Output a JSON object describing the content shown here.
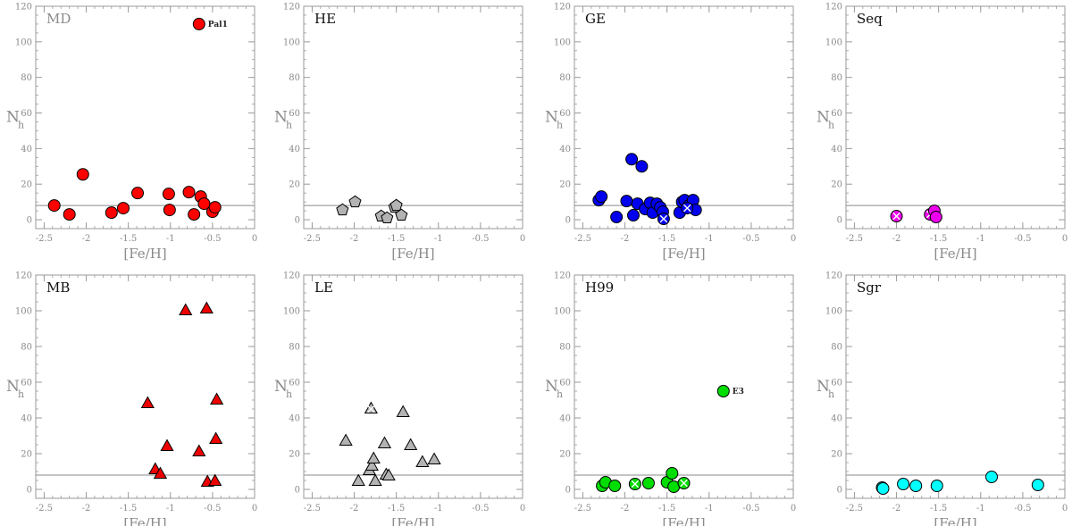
{
  "chart_data": [
    {
      "type": "scatter",
      "panel": "MD",
      "label_style": "grey",
      "marker": "circle",
      "color": "#ff0000",
      "xlabel": "[Fe/H]",
      "ylabel": "N",
      "ylabel_sub": "h",
      "xlim": [
        -2.6,
        0
      ],
      "ylim": [
        -5,
        120
      ],
      "xticks": [
        "-2.5",
        "-2",
        "-1.5",
        "-1",
        "-0.5",
        "0"
      ],
      "yticks": [
        "0",
        "20",
        "40",
        "60",
        "80",
        "100",
        "120"
      ],
      "hline": 8,
      "points": [
        {
          "x": -2.38,
          "y": 8
        },
        {
          "x": -2.2,
          "y": 3
        },
        {
          "x": -2.04,
          "y": 25.5
        },
        {
          "x": -1.7,
          "y": 4
        },
        {
          "x": -1.56,
          "y": 6.5
        },
        {
          "x": -1.39,
          "y": 15
        },
        {
          "x": -1.02,
          "y": 14.5
        },
        {
          "x": -1.01,
          "y": 5.5
        },
        {
          "x": -0.78,
          "y": 15.5
        },
        {
          "x": -0.72,
          "y": 3
        },
        {
          "x": -0.64,
          "y": 13
        },
        {
          "x": -0.6,
          "y": 9
        },
        {
          "x": -0.5,
          "y": 4.5
        },
        {
          "x": -0.47,
          "y": 7
        },
        {
          "x": -0.66,
          "y": 110
        }
      ],
      "annotations": [
        {
          "text": "Pal1",
          "x": -0.66,
          "y": 110
        }
      ]
    },
    {
      "type": "scatter",
      "panel": "HE",
      "label_style": "dark",
      "marker": "pentagon",
      "color": "#b3b3b3",
      "xlabel": "[Fe/H]",
      "ylabel": "N",
      "ylabel_sub": "h",
      "xlim": [
        -2.6,
        0
      ],
      "ylim": [
        -5,
        120
      ],
      "xticks": [
        "-2.5",
        "-2",
        "-1.5",
        "-1",
        "-0.5",
        "0"
      ],
      "yticks": [
        "0",
        "20",
        "40",
        "60",
        "80",
        "100",
        "120"
      ],
      "hline": 8,
      "points": [
        {
          "x": -2.14,
          "y": 5.5
        },
        {
          "x": -1.99,
          "y": 10
        },
        {
          "x": -1.68,
          "y": 2
        },
        {
          "x": -1.61,
          "y": 1
        },
        {
          "x": -1.52,
          "y": 7
        },
        {
          "x": -1.5,
          "y": 8
        },
        {
          "x": -1.44,
          "y": 2.5
        }
      ]
    },
    {
      "type": "scatter",
      "panel": "GE",
      "label_style": "dark",
      "marker": "circle",
      "color": "#0000ee",
      "xlabel": "[Fe/H]",
      "ylabel": "N",
      "ylabel_sub": "h",
      "xlim": [
        -2.6,
        0
      ],
      "ylim": [
        -5,
        120
      ],
      "xticks": [
        "-2.5",
        "-2",
        "-1.5",
        "-1",
        "-0.5",
        "0"
      ],
      "yticks": [
        "0",
        "20",
        "40",
        "60",
        "80",
        "100",
        "120"
      ],
      "hline": 8,
      "points": [
        {
          "x": -2.31,
          "y": 11
        },
        {
          "x": -2.28,
          "y": 13
        },
        {
          "x": -2.1,
          "y": 1.5
        },
        {
          "x": -1.98,
          "y": 10.5
        },
        {
          "x": -1.92,
          "y": 34
        },
        {
          "x": -1.9,
          "y": 2.5
        },
        {
          "x": -1.85,
          "y": 9
        },
        {
          "x": -1.8,
          "y": 30
        },
        {
          "x": -1.76,
          "y": 6
        },
        {
          "x": -1.7,
          "y": 9.5
        },
        {
          "x": -1.67,
          "y": 4
        },
        {
          "x": -1.62,
          "y": 9
        },
        {
          "x": -1.58,
          "y": 7
        },
        {
          "x": -1.55,
          "y": 4.5
        },
        {
          "x": -1.35,
          "y": 4
        },
        {
          "x": -1.32,
          "y": 10
        },
        {
          "x": -1.29,
          "y": 11
        },
        {
          "x": -1.24,
          "y": 8
        },
        {
          "x": -1.19,
          "y": 11
        },
        {
          "x": -1.16,
          "y": 5.5
        },
        {
          "x": -1.54,
          "y": 0.5,
          "cross": true
        },
        {
          "x": -1.26,
          "y": 6.5,
          "cross": true
        }
      ]
    },
    {
      "type": "scatter",
      "panel": "Seq",
      "label_style": "dark",
      "marker": "circle",
      "color": "#ee00ee",
      "xlabel": "[Fe/H]",
      "ylabel": "N",
      "ylabel_sub": "h",
      "xlim": [
        -2.6,
        0
      ],
      "ylim": [
        -5,
        120
      ],
      "xticks": [
        "-2.5",
        "-2",
        "-1.5",
        "-1",
        "-0.5",
        "0"
      ],
      "yticks": [
        "0",
        "20",
        "40",
        "60",
        "80",
        "100",
        "120"
      ],
      "hline": 8,
      "points": [
        {
          "x": -2.0,
          "y": 2,
          "cross": true
        },
        {
          "x": -1.6,
          "y": 3,
          "cross": true
        },
        {
          "x": -1.55,
          "y": 5
        },
        {
          "x": -1.53,
          "y": 1.5
        }
      ]
    },
    {
      "type": "scatter",
      "panel": "MB",
      "label_style": "dark",
      "marker": "triangle",
      "color": "#ee0000",
      "xlabel": "[Fe/H]",
      "ylabel": "N",
      "ylabel_sub": "h",
      "xlim": [
        -2.6,
        0
      ],
      "ylim": [
        -5,
        120
      ],
      "xticks": [
        "-2.5",
        "-2",
        "-1.5",
        "-1",
        "-0.5",
        "0"
      ],
      "yticks": [
        "0",
        "20",
        "40",
        "60",
        "80",
        "100",
        "120"
      ],
      "hline": 8,
      "points": [
        {
          "x": -1.27,
          "y": 48
        },
        {
          "x": -1.18,
          "y": 11
        },
        {
          "x": -1.12,
          "y": 8.5
        },
        {
          "x": -1.04,
          "y": 24
        },
        {
          "x": -0.82,
          "y": 100
        },
        {
          "x": -0.66,
          "y": 21
        },
        {
          "x": -0.57,
          "y": 101
        },
        {
          "x": -0.56,
          "y": 4
        },
        {
          "x": -0.47,
          "y": 4.5
        },
        {
          "x": -0.46,
          "y": 28
        },
        {
          "x": -0.45,
          "y": 50
        }
      ]
    },
    {
      "type": "scatter",
      "panel": "LE",
      "label_style": "dark",
      "marker": "triangle",
      "color": "#b3b3b3",
      "xlabel": "[Fe/H]",
      "ylabel": "N",
      "ylabel_sub": "h",
      "xlim": [
        -2.6,
        0
      ],
      "ylim": [
        -5,
        120
      ],
      "xticks": [
        "-2.5",
        "-2",
        "-1.5",
        "-1",
        "-0.5",
        "0"
      ],
      "yticks": [
        "0",
        "20",
        "40",
        "60",
        "80",
        "100",
        "120"
      ],
      "hline": 8,
      "points": [
        {
          "x": -2.1,
          "y": 27
        },
        {
          "x": -1.95,
          "y": 4.5
        },
        {
          "x": -1.82,
          "y": 10.5
        },
        {
          "x": -1.79,
          "y": 13
        },
        {
          "x": -1.77,
          "y": 17
        },
        {
          "x": -1.75,
          "y": 4.5
        },
        {
          "x": -1.64,
          "y": 25.5
        },
        {
          "x": -1.62,
          "y": 8
        },
        {
          "x": -1.59,
          "y": 7.5
        },
        {
          "x": -1.42,
          "y": 43
        },
        {
          "x": -1.33,
          "y": 24.5
        },
        {
          "x": -1.19,
          "y": 15
        },
        {
          "x": -1.05,
          "y": 16.5
        },
        {
          "x": -1.8,
          "y": 45,
          "cross": true
        }
      ]
    },
    {
      "type": "scatter",
      "panel": "H99",
      "label_style": "dark",
      "marker": "circle",
      "color": "#00dd00",
      "xlabel": "[Fe/H]",
      "ylabel": "N",
      "ylabel_sub": "h",
      "xlim": [
        -2.6,
        0
      ],
      "ylim": [
        -5,
        120
      ],
      "xticks": [
        "-2.5",
        "-2",
        "-1.5",
        "-1",
        "-0.5",
        "0"
      ],
      "yticks": [
        "0",
        "20",
        "40",
        "60",
        "80",
        "100",
        "120"
      ],
      "hline": 8,
      "points": [
        {
          "x": -2.27,
          "y": 2
        },
        {
          "x": -2.23,
          "y": 4
        },
        {
          "x": -2.12,
          "y": 2
        },
        {
          "x": -1.72,
          "y": 3.5
        },
        {
          "x": -1.5,
          "y": 4
        },
        {
          "x": -1.44,
          "y": 9
        },
        {
          "x": -1.42,
          "y": 1.5
        },
        {
          "x": -0.83,
          "y": 55
        },
        {
          "x": -1.88,
          "y": 3,
          "cross": true
        },
        {
          "x": -1.3,
          "y": 3.5,
          "cross": true
        }
      ],
      "annotations": [
        {
          "text": "E3",
          "x": -0.83,
          "y": 55
        }
      ]
    },
    {
      "type": "scatter",
      "panel": "Sgr",
      "label_style": "dark",
      "marker": "circle",
      "color": "#00ffff",
      "xlabel": "[Fe/H]",
      "ylabel": "N",
      "ylabel_sub": "h",
      "xlim": [
        -2.6,
        0
      ],
      "ylim": [
        -5,
        120
      ],
      "xticks": [
        "-2.5",
        "-2",
        "-1.5",
        "-1",
        "-0.5",
        "0"
      ],
      "yticks": [
        "0",
        "20",
        "40",
        "60",
        "80",
        "100",
        "120"
      ],
      "hline": 8,
      "points": [
        {
          "x": -2.17,
          "y": 1
        },
        {
          "x": -2.16,
          "y": 0.5
        },
        {
          "x": -1.92,
          "y": 3
        },
        {
          "x": -1.77,
          "y": 2
        },
        {
          "x": -1.52,
          "y": 2
        },
        {
          "x": -0.87,
          "y": 7
        },
        {
          "x": -0.32,
          "y": 2.5
        }
      ]
    }
  ]
}
